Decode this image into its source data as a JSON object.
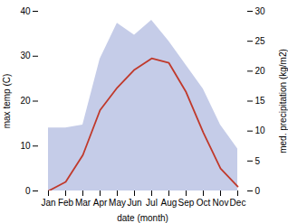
{
  "chart_data": {
    "type": "line",
    "categories": [
      "Jan",
      "Feb",
      "Mar",
      "Apr",
      "May",
      "Jun",
      "Jul",
      "Aug",
      "Sep",
      "Oct",
      "Nov",
      "Dec"
    ],
    "series": [
      {
        "type": "area",
        "axis": "y2",
        "color": "#c5cce8",
        "values": [
          10.5,
          10.5,
          11,
          22,
          28,
          26,
          28.5,
          25,
          21,
          17,
          11,
          7
        ]
      },
      {
        "type": "line",
        "color": "#c0392b",
        "values": [
          0,
          2,
          8,
          18,
          23,
          27,
          29.5,
          28.5,
          22,
          13,
          5,
          1
        ]
      }
    ],
    "xlabel": "date (month)",
    "ylabel": "max temp (C)",
    "y2label": "med. precipitation (kg/m2)",
    "ylim": [
      0,
      40
    ],
    "yticks": [
      0,
      10,
      20,
      30,
      40
    ],
    "y2lim": [
      0,
      30
    ],
    "y2ticks": [
      0,
      5,
      10,
      15,
      20,
      25,
      30
    ]
  }
}
